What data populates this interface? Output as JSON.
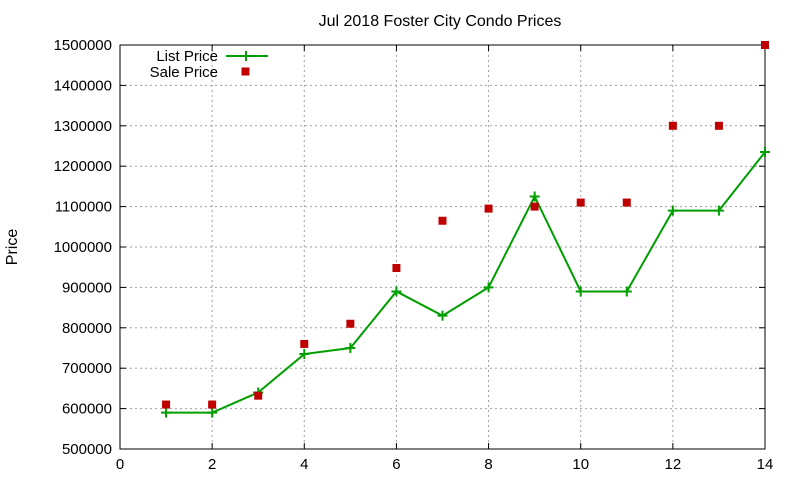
{
  "chart_data": {
    "type": "line",
    "title": "Jul 2018 Foster City Condo Prices",
    "xlabel": "",
    "ylabel": "Price",
    "xlim": [
      0,
      14
    ],
    "ylim": [
      500000,
      1500000
    ],
    "x_ticks": [
      0,
      2,
      4,
      6,
      8,
      10,
      12,
      14
    ],
    "y_ticks": [
      500000,
      600000,
      700000,
      800000,
      900000,
      1000000,
      1100000,
      1200000,
      1300000,
      1400000,
      1500000
    ],
    "grid": true,
    "legend_position": "top-left",
    "series": [
      {
        "name": "List Price",
        "style": "line-with-plus-markers",
        "color": "#009e00",
        "x": [
          1,
          2,
          3,
          4,
          5,
          6,
          7,
          8,
          9,
          10,
          11,
          12,
          13,
          14
        ],
        "values": [
          590000,
          590000,
          640000,
          735000,
          750000,
          890000,
          830000,
          900000,
          1125000,
          890000,
          890000,
          1090000,
          1090000,
          1235000
        ]
      },
      {
        "name": "Sale Price",
        "style": "square-points",
        "color": "#c00000",
        "x": [
          1,
          2,
          3,
          4,
          5,
          6,
          7,
          8,
          9,
          10,
          11,
          12,
          13,
          14
        ],
        "values": [
          610000,
          610000,
          632000,
          760000,
          810000,
          948000,
          1065000,
          1095000,
          1100000,
          1110000,
          1110000,
          1300000,
          1300000,
          1500000
        ]
      }
    ]
  }
}
